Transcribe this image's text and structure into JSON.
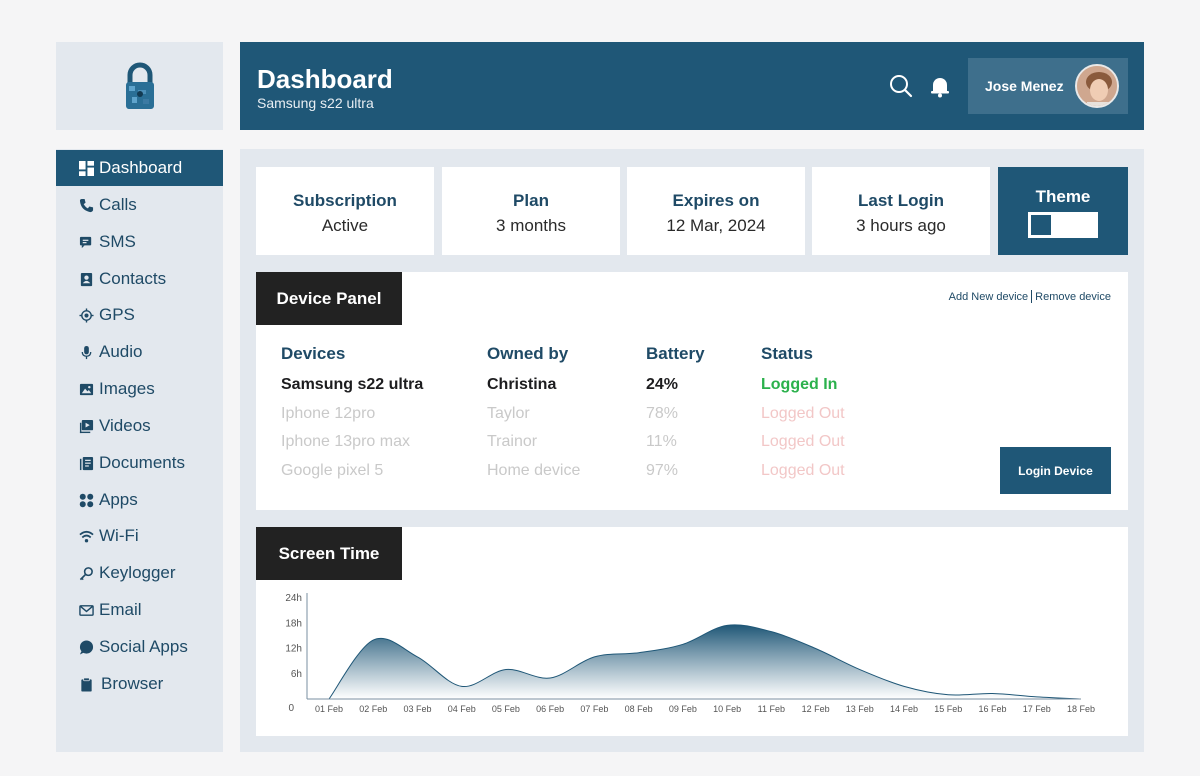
{
  "header": {
    "title": "Dashboard",
    "subtitle": "Samsung s22 ultra",
    "user_name": "Jose Menez"
  },
  "sidebar": {
    "items": [
      {
        "label": "Dashboard",
        "icon": "grid-icon",
        "active": true
      },
      {
        "label": "Calls",
        "icon": "phone-icon"
      },
      {
        "label": "SMS",
        "icon": "chat-icon"
      },
      {
        "label": "Contacts",
        "icon": "contacts-icon"
      },
      {
        "label": "GPS",
        "icon": "location-icon"
      },
      {
        "label": "Audio",
        "icon": "microphone-icon"
      },
      {
        "label": "Images",
        "icon": "image-icon"
      },
      {
        "label": "Videos",
        "icon": "video-icon"
      },
      {
        "label": "Documents",
        "icon": "documents-icon"
      },
      {
        "label": "Apps",
        "icon": "apps-icon"
      },
      {
        "label": "Wi-Fi",
        "icon": "wifi-icon"
      },
      {
        "label": "Keylogger",
        "icon": "key-icon"
      },
      {
        "label": "Email",
        "icon": "mail-icon"
      },
      {
        "label": "Social Apps",
        "icon": "social-icon"
      },
      {
        "label": "Browser",
        "icon": "clipboard-icon"
      }
    ]
  },
  "stats": [
    {
      "label": "Subscription",
      "value": "Active"
    },
    {
      "label": "Plan",
      "value": "3 months"
    },
    {
      "label": "Expires on",
      "value": "12 Mar, 2024"
    },
    {
      "label": "Last Login",
      "value": "3 hours ago"
    }
  ],
  "theme": {
    "label": "Theme"
  },
  "device_panel": {
    "title": "Device Panel",
    "add_link": "Add New device",
    "remove_link": "Remove device",
    "columns": [
      "Devices",
      "Owned by",
      "Battery",
      "Status"
    ],
    "rows": [
      {
        "device": "Samsung s22 ultra",
        "owner": "Christina",
        "battery": "24%",
        "status": "Logged In",
        "active": true
      },
      {
        "device": "Iphone 12pro",
        "owner": "Taylor",
        "battery": "78%",
        "status": "Logged Out",
        "active": false
      },
      {
        "device": "Iphone 13pro max",
        "owner": "Trainor",
        "battery": "11%",
        "status": "Logged Out",
        "active": false
      },
      {
        "device": "Google pixel 5",
        "owner": "Home device",
        "battery": "97%",
        "status": "Logged Out",
        "active": false
      }
    ],
    "login_button": "Login Device"
  },
  "screen_time": {
    "title": "Screen Time"
  },
  "colors": {
    "primary": "#1f5777",
    "panel_bg": "#e3e8ee",
    "status_in": "#2bb14c",
    "status_out": "#f2c7c7"
  },
  "chart_data": {
    "type": "area",
    "title": "",
    "xlabel": "",
    "ylabel": "",
    "categories": [
      "01 Feb",
      "02 Feb",
      "03 Feb",
      "04 Feb",
      "05 Feb",
      "06 Feb",
      "07 Feb",
      "08 Feb",
      "09 Feb",
      "10 Feb",
      "11 Feb",
      "12 Feb",
      "13 Feb",
      "14 Feb",
      "15 Feb",
      "16 Feb",
      "17 Feb",
      "18 Feb"
    ],
    "y_ticks": [
      "0",
      "6h",
      "12h",
      "18h",
      "24h"
    ],
    "ylim": [
      0,
      24
    ],
    "values": [
      0,
      14,
      10,
      3,
      7,
      5,
      10,
      11,
      13,
      17.5,
      16,
      12,
      7,
      3,
      1,
      1.3,
      0.5,
      0
    ],
    "grid": false
  }
}
